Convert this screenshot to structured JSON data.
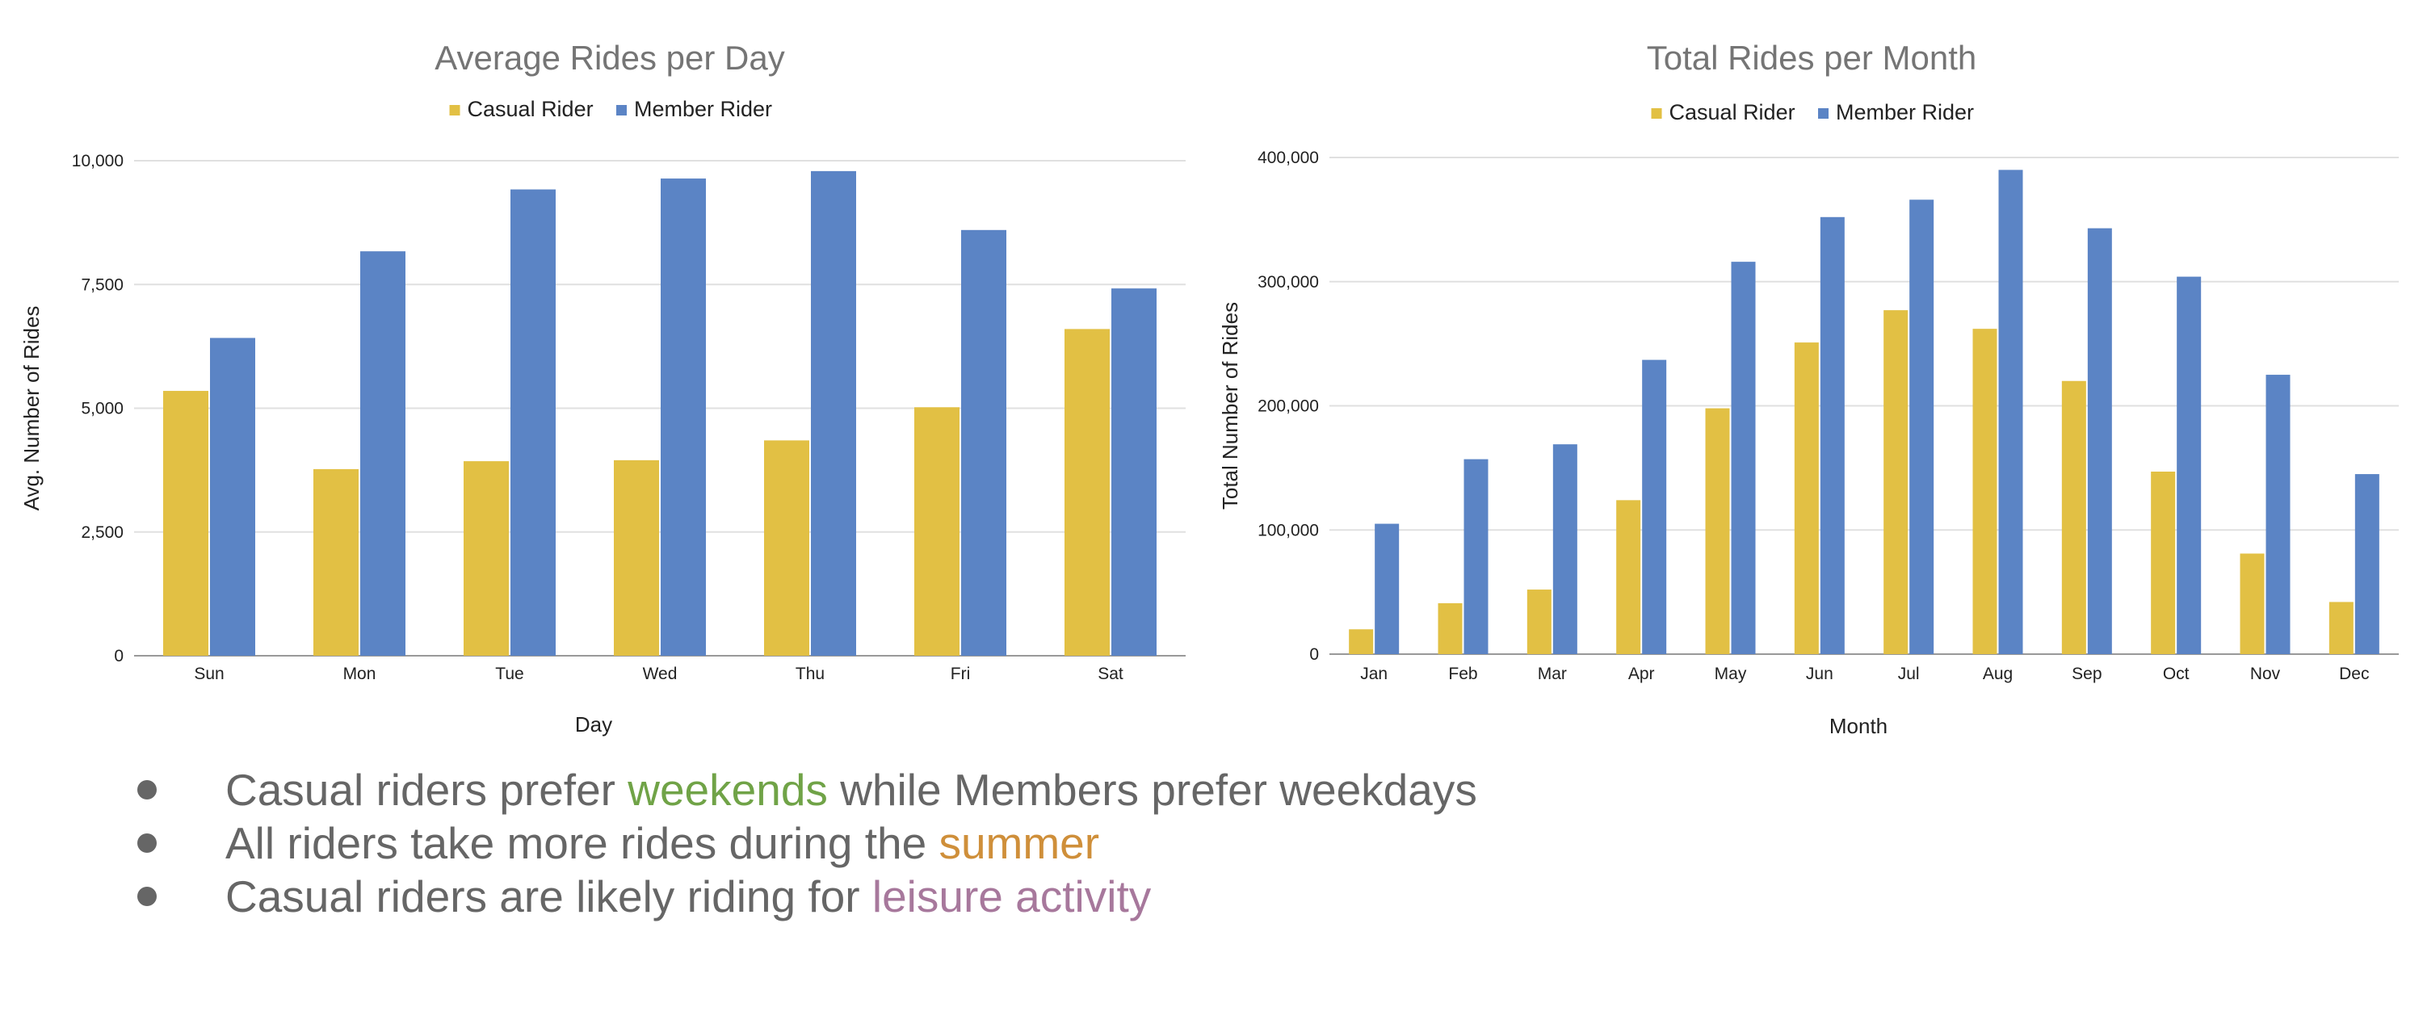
{
  "colors": {
    "casual": "#e2c044",
    "member": "#5b84c5",
    "title": "#757575",
    "grid": "#e0e0e0",
    "axis": "#999999",
    "text": "#222222"
  },
  "chart_data": [
    {
      "type": "bar",
      "title": "Average Rides per Day",
      "xlabel": "Day",
      "ylabel": "Avg. Number of Rides",
      "ylim": [
        0,
        10000
      ],
      "yticks": [
        0,
        2500,
        5000,
        7500,
        10000
      ],
      "ytick_labels": [
        "0",
        "2,500",
        "5,000",
        "7,500",
        "10,000"
      ],
      "legend_position": "top",
      "grid": true,
      "categories": [
        "Sun",
        "Mon",
        "Tue",
        "Wed",
        "Thu",
        "Fri",
        "Sat"
      ],
      "series": [
        {
          "name": "Casual Rider",
          "values": [
            5350,
            3770,
            3930,
            3950,
            4350,
            5020,
            6600
          ]
        },
        {
          "name": "Member Rider",
          "values": [
            6420,
            8170,
            9420,
            9640,
            9790,
            8600,
            7420
          ]
        }
      ]
    },
    {
      "type": "bar",
      "title": "Total Rides per Month",
      "xlabel": "Month",
      "ylabel": "Total Number of Rides",
      "ylim": [
        0,
        400000
      ],
      "yticks": [
        0,
        100000,
        200000,
        300000,
        400000
      ],
      "ytick_labels": [
        "0",
        "100,000",
        "200,000",
        "300,000",
        "400,000"
      ],
      "legend_position": "top",
      "grid": true,
      "categories": [
        "Jan",
        "Feb",
        "Mar",
        "Apr",
        "May",
        "Jun",
        "Jul",
        "Aug",
        "Sep",
        "Oct",
        "Nov",
        "Dec"
      ],
      "series": [
        {
          "name": "Casual Rider",
          "values": [
            20000,
            41000,
            52000,
            124000,
            198000,
            251000,
            277000,
            262000,
            220000,
            147000,
            81000,
            42000
          ]
        },
        {
          "name": "Member Rider",
          "values": [
            105000,
            157000,
            169000,
            237000,
            316000,
            352000,
            366000,
            390000,
            343000,
            304000,
            225000,
            145000
          ]
        }
      ]
    }
  ],
  "bullets": [
    {
      "before": "Casual riders prefer ",
      "highlight": "weekends",
      "after": " while Members prefer weekdays"
    },
    {
      "before": "All riders take more rides during the ",
      "highlight": "summer",
      "after": ""
    },
    {
      "before": "Casual riders are likely riding for ",
      "highlight": "leisure activity",
      "after": ""
    }
  ]
}
